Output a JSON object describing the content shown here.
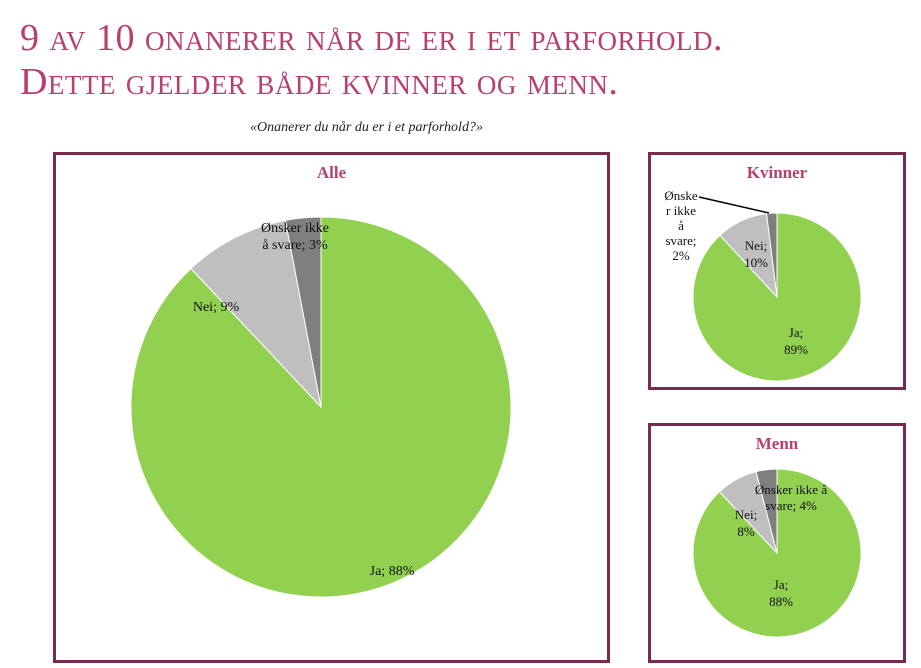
{
  "title_line1": "9 av 10 onanerer når de er i et parforhold.",
  "title_line2": "Dette gjelder både kvinner og menn.",
  "subtitle": "«Onanerer du når du er i et parforhold?»",
  "colors": {
    "accent": "#b8406f",
    "border": "#7a2a4c",
    "ja": "#92d050",
    "nei": "#bfbfbf",
    "onsker_ikke": "#7f7f7f"
  },
  "chart_data": [
    {
      "type": "pie",
      "title": "Alle",
      "slices": [
        {
          "label": "Ja",
          "value": 88,
          "text": "Ja; 88%"
        },
        {
          "label": "Nei",
          "value": 9,
          "text": "Nei; 9%"
        },
        {
          "label": "Ønsker ikke å svare",
          "value": 3,
          "text": "Ønsker ikke å svare; 3%"
        }
      ]
    },
    {
      "type": "pie",
      "title": "Kvinner",
      "slices": [
        {
          "label": "Ja",
          "value": 89,
          "text": "Ja; 89%"
        },
        {
          "label": "Nei",
          "value": 10,
          "text": "Nei; 10%"
        },
        {
          "label": "Ønsker ikke å svare",
          "value": 2,
          "text": "Ønsker ikke å svare; 2%"
        }
      ]
    },
    {
      "type": "pie",
      "title": "Menn",
      "slices": [
        {
          "label": "Ja",
          "value": 88,
          "text": "Ja; 88%"
        },
        {
          "label": "Nei",
          "value": 8,
          "text": "Nei; 8%"
        },
        {
          "label": "Ønsker ikke å svare",
          "value": 4,
          "text": "Ønsker ikke å svare; 4%"
        }
      ]
    }
  ]
}
